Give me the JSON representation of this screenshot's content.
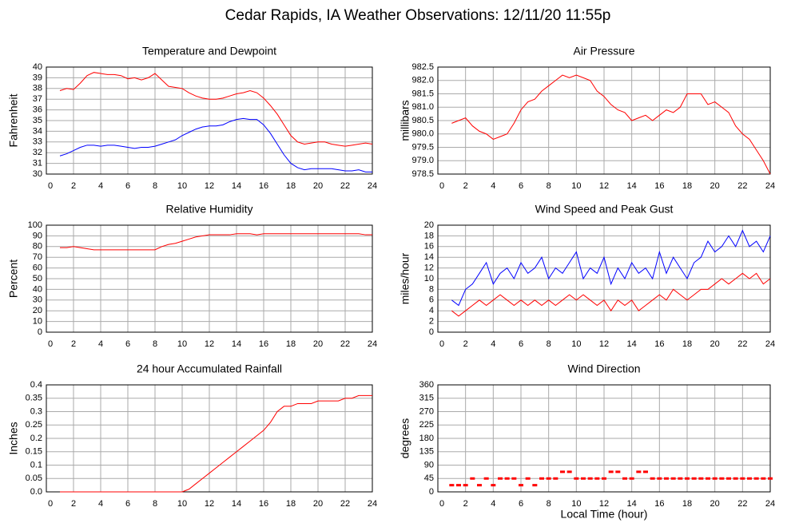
{
  "title": "Cedar Rapids, IA Weather Observations: 12/11/20 11:55p",
  "chart_data": [
    {
      "type": "line",
      "title": "Temperature and Dewpoint",
      "ylabel": "Fahrenheit",
      "x": [
        1,
        1.5,
        2,
        2.5,
        3,
        3.5,
        4,
        4.5,
        5,
        5.5,
        6,
        6.5,
        7,
        7.5,
        8,
        8.5,
        9,
        9.5,
        10,
        10.5,
        11,
        11.5,
        12,
        12.5,
        13,
        13.5,
        14,
        14.5,
        15,
        15.5,
        16,
        16.5,
        17,
        17.5,
        18,
        18.5,
        19,
        19.5,
        20,
        20.5,
        21,
        21.5,
        22,
        22.5,
        23,
        23.5,
        24
      ],
      "series": [
        {
          "color": "#ff0000",
          "values": [
            37.8,
            38,
            37.9,
            38.5,
            39.2,
            39.5,
            39.4,
            39.3,
            39.3,
            39.2,
            38.9,
            39,
            38.8,
            39,
            39.4,
            38.8,
            38.2,
            38.1,
            38,
            37.6,
            37.3,
            37.1,
            37,
            37,
            37.1,
            37.3,
            37.5,
            37.6,
            37.8,
            37.6,
            37.1,
            36.4,
            35.6,
            34.6,
            33.6,
            33,
            32.8,
            32.9,
            33,
            33,
            32.8,
            32.7,
            32.6,
            32.7,
            32.8,
            32.9,
            32.8
          ]
        },
        {
          "color": "#0000ff",
          "values": [
            31.7,
            31.9,
            32.2,
            32.5,
            32.7,
            32.7,
            32.6,
            32.7,
            32.7,
            32.6,
            32.5,
            32.4,
            32.5,
            32.5,
            32.6,
            32.8,
            33,
            33.2,
            33.6,
            33.9,
            34.2,
            34.4,
            34.5,
            34.5,
            34.6,
            34.9,
            35.1,
            35.2,
            35.1,
            35.1,
            34.6,
            33.8,
            32.8,
            31.8,
            31,
            30.6,
            30.4,
            30.5,
            30.5,
            30.5,
            30.5,
            30.4,
            30.3,
            30.3,
            30.4,
            30.2,
            30.2
          ]
        }
      ],
      "xlim": [
        0,
        24
      ],
      "xticks": [
        0,
        2,
        4,
        6,
        8,
        10,
        12,
        14,
        16,
        18,
        20,
        22,
        24
      ],
      "ylim": [
        30,
        40
      ],
      "yticks": [
        30,
        31,
        32,
        33,
        34,
        35,
        36,
        37,
        38,
        39,
        40
      ],
      "grid": true
    },
    {
      "type": "line",
      "title": "Air Pressure",
      "ylabel": "millibars",
      "x": [
        1,
        1.5,
        2,
        2.5,
        3,
        3.5,
        4,
        4.5,
        5,
        5.5,
        6,
        6.5,
        7,
        7.5,
        8,
        8.5,
        9,
        9.5,
        10,
        10.5,
        11,
        11.5,
        12,
        12.5,
        13,
        13.5,
        14,
        14.5,
        15,
        15.5,
        16,
        16.5,
        17,
        17.5,
        18,
        18.5,
        19,
        19.5,
        20,
        20.5,
        21,
        21.5,
        22,
        22.5,
        23,
        23.5,
        24
      ],
      "series": [
        {
          "color": "#ff0000",
          "values": [
            980.4,
            980.5,
            980.6,
            980.3,
            980.1,
            980.0,
            979.8,
            979.9,
            980.0,
            980.4,
            980.9,
            981.2,
            981.3,
            981.6,
            981.8,
            982.0,
            982.2,
            982.1,
            982.2,
            982.1,
            982.0,
            981.6,
            981.4,
            981.1,
            980.9,
            980.8,
            980.5,
            980.6,
            980.7,
            980.5,
            980.7,
            980.9,
            980.8,
            981.0,
            981.5,
            981.5,
            981.5,
            981.1,
            981.2,
            981.0,
            980.8,
            980.3,
            980.0,
            979.8,
            979.4,
            979.0,
            978.5
          ]
        }
      ],
      "xlim": [
        0,
        24
      ],
      "xticks": [
        0,
        2,
        4,
        6,
        8,
        10,
        12,
        14,
        16,
        18,
        20,
        22,
        24
      ],
      "ylim": [
        978.5,
        982.5
      ],
      "yticks": [
        978.5,
        {
          "value": 979,
          "label": "979.0"
        },
        979.5,
        {
          "value": 980,
          "label": "980.0"
        },
        980.5,
        {
          "value": 981,
          "label": "981.0"
        },
        981.5,
        {
          "value": 982,
          "label": "982.0"
        },
        982.5
      ],
      "grid": true
    },
    {
      "type": "line",
      "title": "Relative Humidity",
      "ylabel": "Percent",
      "x": [
        1,
        1.5,
        2,
        2.5,
        3,
        3.5,
        4,
        4.5,
        5,
        5.5,
        6,
        6.5,
        7,
        7.5,
        8,
        8.5,
        9,
        9.5,
        10,
        10.5,
        11,
        11.5,
        12,
        12.5,
        13,
        13.5,
        14,
        14.5,
        15,
        15.5,
        16,
        16.5,
        17,
        17.5,
        18,
        18.5,
        19,
        19.5,
        20,
        20.5,
        21,
        21.5,
        22,
        22.5,
        23,
        23.5,
        24
      ],
      "series": [
        {
          "color": "#ff0000",
          "values": [
            79,
            79,
            80,
            79,
            78,
            77,
            77,
            77,
            77,
            77,
            77,
            77,
            77,
            77,
            77,
            80,
            82,
            83,
            85,
            87,
            89,
            90,
            91,
            91,
            91,
            91,
            92,
            92,
            92,
            91,
            92,
            92,
            92,
            92,
            92,
            92,
            92,
            92,
            92,
            92,
            92,
            92,
            92,
            92,
            92,
            91,
            91
          ]
        }
      ],
      "xlim": [
        0,
        24
      ],
      "xticks": [
        0,
        2,
        4,
        6,
        8,
        10,
        12,
        14,
        16,
        18,
        20,
        22,
        24
      ],
      "ylim": [
        0,
        100
      ],
      "yticks": [
        0,
        10,
        20,
        30,
        40,
        50,
        60,
        70,
        80,
        90,
        100
      ],
      "grid": true
    },
    {
      "type": "line",
      "title": "Wind Speed and Peak Gust",
      "ylabel": "miles/hour",
      "x": [
        1,
        1.5,
        2,
        2.5,
        3,
        3.5,
        4,
        4.5,
        5,
        5.5,
        6,
        6.5,
        7,
        7.5,
        8,
        8.5,
        9,
        9.5,
        10,
        10.5,
        11,
        11.5,
        12,
        12.5,
        13,
        13.5,
        14,
        14.5,
        15,
        15.5,
        16,
        16.5,
        17,
        17.5,
        18,
        18.5,
        19,
        19.5,
        20,
        20.5,
        21,
        21.5,
        22,
        22.5,
        23,
        23.5,
        24
      ],
      "series": [
        {
          "color": "#0000ff",
          "values": [
            6,
            5,
            8,
            9,
            11,
            13,
            9,
            11,
            12,
            10,
            13,
            11,
            12,
            14,
            10,
            12,
            11,
            13,
            15,
            10,
            12,
            11,
            14,
            9,
            12,
            10,
            13,
            11,
            12,
            10,
            15,
            11,
            14,
            12,
            10,
            13,
            14,
            17,
            15,
            16,
            18,
            16,
            19,
            16,
            17,
            15,
            18
          ]
        },
        {
          "color": "#ff0000",
          "values": [
            4,
            3,
            4,
            5,
            6,
            5,
            6,
            7,
            6,
            5,
            6,
            5,
            6,
            5,
            6,
            5,
            6,
            7,
            6,
            7,
            6,
            5,
            6,
            4,
            6,
            5,
            6,
            4,
            5,
            6,
            7,
            6,
            8,
            7,
            6,
            7,
            8,
            8,
            9,
            10,
            9,
            10,
            11,
            10,
            11,
            9,
            10
          ]
        }
      ],
      "xlim": [
        0,
        24
      ],
      "xticks": [
        0,
        2,
        4,
        6,
        8,
        10,
        12,
        14,
        16,
        18,
        20,
        22,
        24
      ],
      "ylim": [
        0,
        20
      ],
      "yticks": [
        0,
        2,
        4,
        6,
        8,
        10,
        12,
        14,
        16,
        18,
        20
      ],
      "grid": true
    },
    {
      "type": "line",
      "title": "24 hour Accumulated Rainfall",
      "ylabel": "Inches",
      "x": [
        1,
        1.5,
        2,
        2.5,
        3,
        3.5,
        4,
        4.5,
        5,
        5.5,
        6,
        6.5,
        7,
        7.5,
        8,
        8.5,
        9,
        9.5,
        10,
        10.5,
        11,
        11.5,
        12,
        12.5,
        13,
        13.5,
        14,
        14.5,
        15,
        15.5,
        16,
        16.5,
        17,
        17.5,
        18,
        18.5,
        19,
        19.5,
        20,
        20.5,
        21,
        21.5,
        22,
        22.5,
        23,
        23.5,
        24
      ],
      "series": [
        {
          "color": "#ff0000",
          "values": [
            0,
            0,
            0,
            0,
            0,
            0,
            0,
            0,
            0,
            0,
            0,
            0,
            0,
            0,
            0,
            0,
            0,
            0,
            0,
            0.01,
            0.03,
            0.05,
            0.07,
            0.09,
            0.11,
            0.13,
            0.15,
            0.17,
            0.19,
            0.21,
            0.23,
            0.26,
            0.3,
            0.32,
            0.32,
            0.33,
            0.33,
            0.33,
            0.34,
            0.34,
            0.34,
            0.34,
            0.35,
            0.35,
            0.36,
            0.36,
            0.36
          ]
        }
      ],
      "xlim": [
        0,
        24
      ],
      "xticks": [
        0,
        2,
        4,
        6,
        8,
        10,
        12,
        14,
        16,
        18,
        20,
        22,
        24
      ],
      "ylim": [
        0,
        0.4
      ],
      "yticks": [
        {
          "value": 0,
          "label": "0.0"
        },
        0.05,
        0.1,
        0.15,
        0.2,
        0.25,
        0.3,
        0.35,
        0.4
      ],
      "grid": true
    },
    {
      "type": "scatter",
      "title": "Wind Direction",
      "ylabel": "degrees",
      "xlabel": "Local Time (hour)",
      "x": [
        1,
        1.5,
        2,
        2.5,
        3,
        3.5,
        4,
        4.5,
        5,
        5.5,
        6,
        6.5,
        7,
        7.5,
        8,
        8.5,
        9,
        9.5,
        10,
        10.5,
        11,
        11.5,
        12,
        12.5,
        13,
        13.5,
        14,
        14.5,
        15,
        15.5,
        16,
        16.5,
        17,
        17.5,
        18,
        18.5,
        19,
        19.5,
        20,
        20.5,
        21,
        21.5,
        22,
        22.5,
        23,
        23.5,
        24
      ],
      "series": [
        {
          "color": "#ff0000",
          "values": [
            22.5,
            22.5,
            22.5,
            45,
            22.5,
            45,
            22.5,
            45,
            45,
            45,
            22.5,
            45,
            22.5,
            45,
            45,
            45,
            67.5,
            67.5,
            45,
            45,
            45,
            45,
            45,
            67.5,
            67.5,
            45,
            45,
            67.5,
            67.5,
            45,
            45,
            45,
            45,
            45,
            45,
            45,
            45,
            45,
            45,
            45,
            45,
            45,
            45,
            45,
            45,
            45,
            45
          ]
        }
      ],
      "xlim": [
        0,
        24
      ],
      "xticks": [
        0,
        2,
        4,
        6,
        8,
        10,
        12,
        14,
        16,
        18,
        20,
        22,
        24
      ],
      "ylim": [
        0,
        360
      ],
      "yticks": [
        0,
        45,
        90,
        135,
        180,
        225,
        270,
        315,
        360
      ],
      "grid": true
    }
  ]
}
